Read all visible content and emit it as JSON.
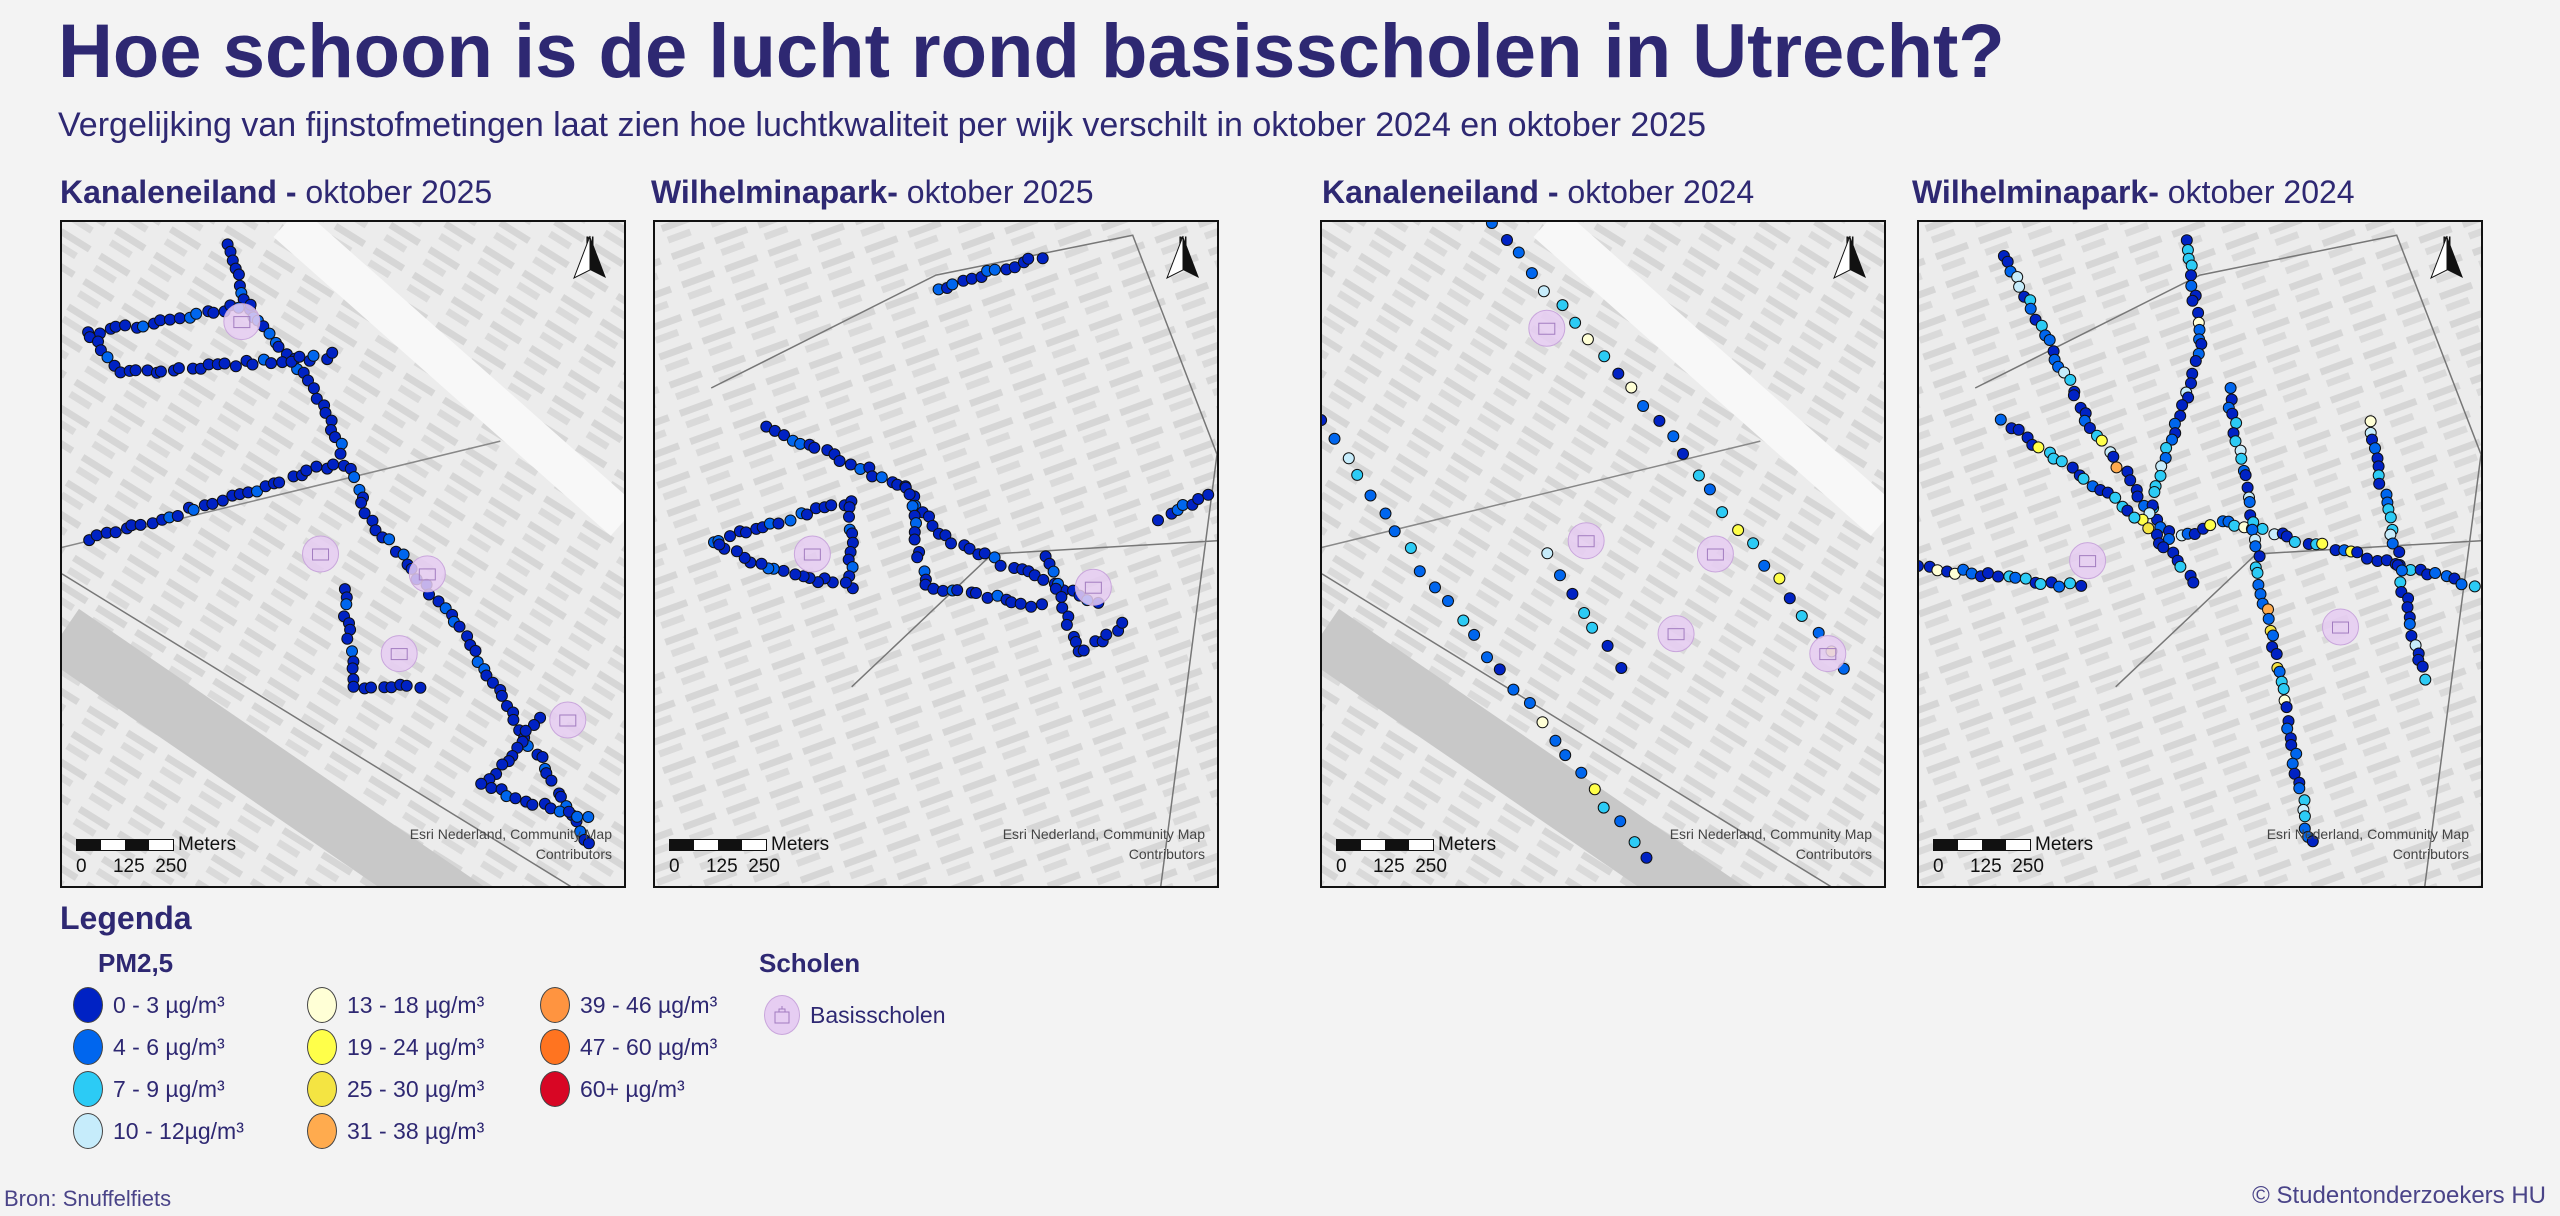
{
  "title": "Hoe schoon is de lucht rond basisscholen in Utrecht?",
  "subtitle": "Vergelijking van fijnstofmetingen laat zien hoe luchtkwaliteit per wijk verschilt in oktober 2024 en oktober 2025",
  "panels": [
    {
      "area": "Kanaleneiland -",
      "period": "oktober 2025",
      "north": "N"
    },
    {
      "area": "Wilhelminapark-",
      "period": "oktober 2025",
      "north": "N"
    },
    {
      "area": "Kanaleneiland -",
      "period": "oktober 2024",
      "north": "N"
    },
    {
      "area": "Wilhelminapark-",
      "period": "oktober 2024",
      "north": "N"
    }
  ],
  "scalebar": {
    "unit": "Meters",
    "ticks": "0     125  250"
  },
  "attribution": {
    "line1": "Esri Nederland, Community Map",
    "line2": "Contributors"
  },
  "legend": {
    "title": "Legenda",
    "pm_title": "PM2,5",
    "classes": [
      {
        "label": "0 - 3 µg/m³",
        "color": "#0022c4"
      },
      {
        "label": "4 - 6 µg/m³",
        "color": "#0066ee"
      },
      {
        "label": "7 - 9 µg/m³",
        "color": "#2ccbf5"
      },
      {
        "label": "10 - 12µg/m³",
        "color": "#c6ecfb"
      },
      {
        "label": "13 - 18 µg/m³",
        "color": "#ffffd6"
      },
      {
        "label": "19 - 24 µg/m³",
        "color": "#ffff4a"
      },
      {
        "label": "25 - 30 µg/m³",
        "color": "#f4e442"
      },
      {
        "label": "31 - 38 µg/m³",
        "color": "#ffab4e"
      },
      {
        "label": "39 - 46 µg/m³",
        "color": "#ff9440"
      },
      {
        "label": "47 - 60 µg/m³",
        "color": "#ff7420"
      },
      {
        "label": "60+ µg/m³",
        "color": "#d80624"
      }
    ],
    "schools_title": "Scholen",
    "schools_label": "Basisscholen",
    "school_color": "#e6cdf2"
  },
  "source": "Bron: Snuffelfiets",
  "copyright": "© Studentonderzoekers HU"
}
